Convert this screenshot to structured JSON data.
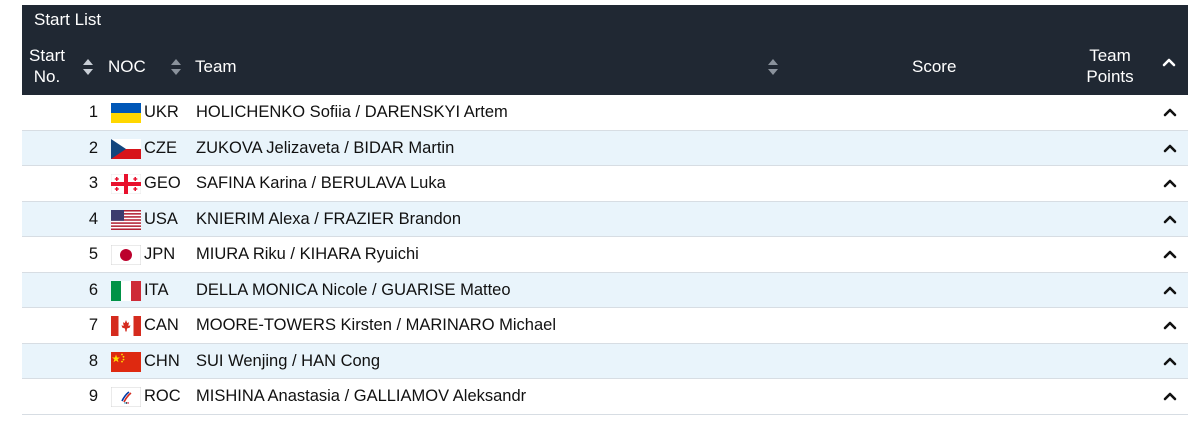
{
  "title": "Start List",
  "headers": {
    "start_no": [
      "Start",
      "No."
    ],
    "noc": "NOC",
    "team": "Team",
    "score": "Score",
    "team_points": [
      "Team",
      "Points"
    ]
  },
  "rows": [
    {
      "no": "1",
      "noc": "UKR",
      "team": "HOLICHENKO Sofiia / DARENSKYI Artem",
      "flag": "flag-ukraine"
    },
    {
      "no": "2",
      "noc": "CZE",
      "team": "ZUKOVA Jelizaveta / BIDAR Martin",
      "flag": "flag-czechia"
    },
    {
      "no": "3",
      "noc": "GEO",
      "team": "SAFINA Karina / BERULAVA Luka",
      "flag": "flag-georgia"
    },
    {
      "no": "4",
      "noc": "USA",
      "team": "KNIERIM Alexa / FRAZIER Brandon",
      "flag": "flag-usa"
    },
    {
      "no": "5",
      "noc": "JPN",
      "team": "MIURA Riku / KIHARA Ryuichi",
      "flag": "flag-japan"
    },
    {
      "no": "6",
      "noc": "ITA",
      "team": "DELLA MONICA Nicole / GUARISE Matteo",
      "flag": "flag-italy"
    },
    {
      "no": "7",
      "noc": "CAN",
      "team": "MOORE-TOWERS Kirsten / MARINARO Michael",
      "flag": "flag-canada"
    },
    {
      "no": "8",
      "noc": "CHN",
      "team": "SUI Wenjing / HAN Cong",
      "flag": "flag-china"
    },
    {
      "no": "9",
      "noc": "ROC",
      "team": "MISHINA Anastasia / GALLIAMOV Aleksandr",
      "flag": "flag-roc"
    }
  ],
  "colors": {
    "header_bg": "#202833",
    "alt_row_bg": "#e9f4fb",
    "border": "#d7dde3"
  },
  "icons": {
    "sort": "sort-icon",
    "expand": "chevron-up-icon"
  }
}
